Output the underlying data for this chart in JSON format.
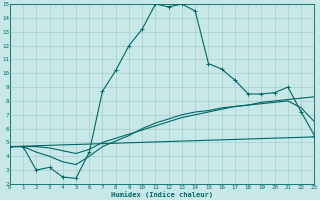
{
  "bg_color": "#c8e8e8",
  "grid_color": "#a8cccc",
  "line_color": "#006666",
  "xlim": [
    0,
    23
  ],
  "ylim": [
    2,
    15
  ],
  "xticks": [
    0,
    1,
    2,
    3,
    4,
    5,
    6,
    7,
    8,
    9,
    10,
    11,
    12,
    13,
    14,
    15,
    16,
    17,
    18,
    19,
    20,
    21,
    22,
    23
  ],
  "yticks": [
    2,
    3,
    4,
    5,
    6,
    7,
    8,
    9,
    10,
    11,
    12,
    13,
    14,
    15
  ],
  "xlabel": "Humidex (Indice chaleur)",
  "curve1_x": [
    0,
    1,
    2,
    3,
    4,
    5,
    6,
    7,
    8,
    9,
    10,
    11,
    12,
    13,
    14,
    15,
    16,
    17,
    18,
    19,
    20,
    21,
    22,
    23
  ],
  "curve1_y": [
    4.7,
    4.7,
    3.0,
    3.2,
    2.5,
    2.4,
    4.3,
    8.7,
    10.2,
    12.0,
    13.2,
    15.0,
    14.8,
    15.0,
    14.5,
    10.7,
    10.3,
    9.5,
    8.5,
    8.5,
    8.6,
    9.0,
    7.2,
    5.5
  ],
  "curve2_x": [
    0,
    1,
    2,
    3,
    4,
    5,
    6,
    7,
    8,
    9,
    10,
    11,
    12,
    13,
    14,
    15,
    16,
    17,
    18,
    19,
    20,
    21,
    22,
    23
  ],
  "curve2_y": [
    4.7,
    4.7,
    4.7,
    4.6,
    4.4,
    4.2,
    4.5,
    5.0,
    5.3,
    5.6,
    5.9,
    6.2,
    6.5,
    6.8,
    7.0,
    7.2,
    7.4,
    7.6,
    7.7,
    7.9,
    8.0,
    8.1,
    8.2,
    8.3
  ],
  "curve3_x": [
    0,
    1,
    2,
    3,
    4,
    5,
    6,
    7,
    8,
    9,
    10,
    11,
    12,
    13,
    14,
    15,
    16,
    17,
    18,
    19,
    20,
    21,
    22,
    23
  ],
  "curve3_y": [
    4.7,
    4.7,
    4.3,
    4.0,
    3.6,
    3.4,
    4.0,
    4.7,
    5.1,
    5.5,
    6.0,
    6.4,
    6.7,
    7.0,
    7.2,
    7.3,
    7.5,
    7.6,
    7.7,
    7.8,
    7.9,
    8.0,
    7.5,
    6.5
  ],
  "curve4_x": [
    0,
    23
  ],
  "curve4_y": [
    4.7,
    5.4
  ]
}
